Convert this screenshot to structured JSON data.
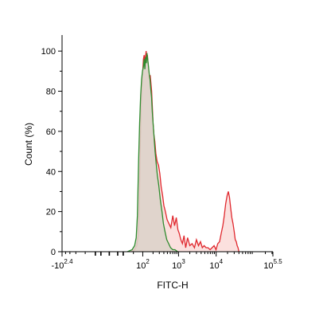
{
  "chart_data": {
    "type": "area",
    "xlabel": "FITC-H",
    "ylabel": "Count (%)",
    "x_scale": "biexponential",
    "x_ticks": [
      {
        "label_base": "-10",
        "label_exp": "2.4",
        "x": -251
      },
      {
        "label_base": "10",
        "label_exp": "2",
        "x": 100
      },
      {
        "label_base": "10",
        "label_exp": "3",
        "x": 1000
      },
      {
        "label_base": "10",
        "label_exp": "4",
        "x": 10000
      },
      {
        "label_base": "10",
        "label_exp": "5.5",
        "x": 316228
      }
    ],
    "xlim": [
      -251,
      316228
    ],
    "ylim": [
      0,
      108
    ],
    "y_ticks": [
      0,
      20,
      40,
      60,
      80,
      100
    ],
    "grid": false,
    "legend": "none",
    "series": [
      {
        "color": "#e0282e",
        "fill": "#fbe0de",
        "points": [
          [
            40,
            0
          ],
          [
            55,
            1
          ],
          [
            65,
            3
          ],
          [
            72,
            8
          ],
          [
            78,
            22
          ],
          [
            84,
            55
          ],
          [
            90,
            75
          ],
          [
            95,
            84
          ],
          [
            100,
            90
          ],
          [
            105,
            96
          ],
          [
            110,
            98
          ],
          [
            115,
            94
          ],
          [
            120,
            97
          ],
          [
            126,
            100
          ],
          [
            132,
            95
          ],
          [
            138,
            98
          ],
          [
            144,
            94
          ],
          [
            150,
            90
          ],
          [
            158,
            86
          ],
          [
            166,
            88
          ],
          [
            174,
            84
          ],
          [
            182,
            80
          ],
          [
            190,
            73
          ],
          [
            200,
            64
          ],
          [
            212,
            58
          ],
          [
            224,
            55
          ],
          [
            240,
            49
          ],
          [
            260,
            45
          ],
          [
            285,
            43
          ],
          [
            310,
            39
          ],
          [
            340,
            32
          ],
          [
            370,
            28
          ],
          [
            400,
            23
          ],
          [
            440,
            20
          ],
          [
            490,
            16
          ],
          [
            550,
            14
          ],
          [
            620,
            12
          ],
          [
            700,
            18
          ],
          [
            780,
            13
          ],
          [
            870,
            17
          ],
          [
            960,
            11
          ],
          [
            1050,
            9
          ],
          [
            1150,
            6
          ],
          [
            1270,
            4
          ],
          [
            1400,
            8
          ],
          [
            1550,
            2
          ],
          [
            1750,
            7
          ],
          [
            2000,
            3
          ],
          [
            2300,
            4
          ],
          [
            2650,
            2
          ],
          [
            3000,
            6
          ],
          [
            3400,
            3
          ],
          [
            3850,
            5
          ],
          [
            4300,
            2
          ],
          [
            4800,
            3
          ],
          [
            5400,
            2
          ],
          [
            6100,
            2
          ],
          [
            6900,
            1
          ],
          [
            7800,
            2
          ],
          [
            8800,
            3
          ],
          [
            9900,
            1
          ],
          [
            11000,
            4
          ],
          [
            12300,
            5
          ],
          [
            13600,
            9
          ],
          [
            15000,
            13
          ],
          [
            16400,
            18
          ],
          [
            17900,
            24
          ],
          [
            19500,
            28
          ],
          [
            21000,
            30
          ],
          [
            22600,
            27
          ],
          [
            24200,
            22
          ],
          [
            26000,
            17
          ],
          [
            28000,
            14
          ],
          [
            30000,
            10
          ],
          [
            32000,
            6
          ],
          [
            34000,
            5
          ],
          [
            36000,
            3
          ],
          [
            38000,
            2
          ],
          [
            40000,
            0
          ]
        ]
      },
      {
        "color": "#2e8b2e",
        "fill": "#ddd3ca",
        "points": [
          [
            30,
            0
          ],
          [
            45,
            1
          ],
          [
            55,
            3
          ],
          [
            62,
            7
          ],
          [
            68,
            18
          ],
          [
            74,
            45
          ],
          [
            80,
            64
          ],
          [
            86,
            78
          ],
          [
            92,
            86
          ],
          [
            98,
            90
          ],
          [
            104,
            92
          ],
          [
            110,
            96
          ],
          [
            116,
            91
          ],
          [
            122,
            97
          ],
          [
            128,
            94
          ],
          [
            134,
            99
          ],
          [
            140,
            96
          ],
          [
            147,
            93
          ],
          [
            155,
            89
          ],
          [
            163,
            86
          ],
          [
            172,
            81
          ],
          [
            181,
            77
          ],
          [
            190,
            70
          ],
          [
            202,
            63
          ],
          [
            214,
            57
          ],
          [
            228,
            50
          ],
          [
            245,
            44
          ],
          [
            265,
            38
          ],
          [
            290,
            33
          ],
          [
            320,
            26
          ],
          [
            355,
            20
          ],
          [
            390,
            14
          ],
          [
            430,
            10
          ],
          [
            480,
            6
          ],
          [
            540,
            4
          ],
          [
            610,
            2
          ],
          [
            700,
            1
          ],
          [
            800,
            1
          ],
          [
            950,
            0
          ]
        ]
      }
    ]
  }
}
